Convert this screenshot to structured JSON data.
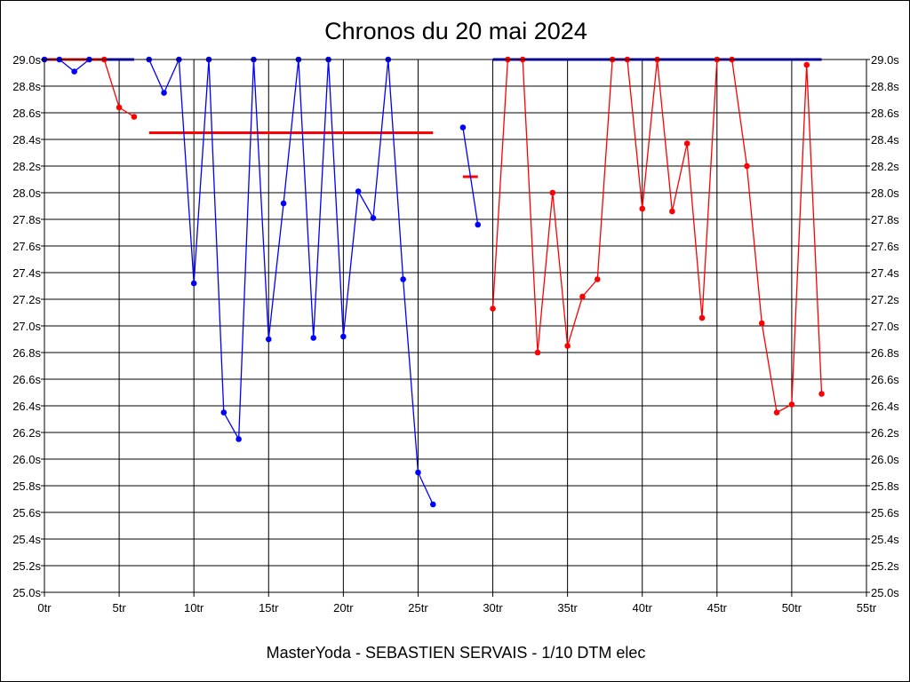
{
  "chart_data": {
    "type": "line",
    "title": "Chronos du 20 mai 2024",
    "footer": "MasterYoda - SEBASTIEN SERVAIS - 1/10 DTM elec",
    "xlim": [
      0,
      55
    ],
    "ylim": [
      25.0,
      29.0
    ],
    "x_ticks": [
      0,
      5,
      10,
      15,
      20,
      25,
      30,
      35,
      40,
      45,
      50,
      55
    ],
    "x_tick_suffix": "tr",
    "y_ticks": [
      25.0,
      25.2,
      25.4,
      25.6,
      25.8,
      26.0,
      26.2,
      26.4,
      26.6,
      26.8,
      27.0,
      27.2,
      27.4,
      27.6,
      27.8,
      28.0,
      28.2,
      28.4,
      28.6,
      28.8,
      29.0
    ],
    "y_tick_suffix": "s",
    "grid": true,
    "colors": {
      "blue": "#0000ff",
      "red": "#ff0000"
    },
    "series": [
      {
        "name": "blue-1",
        "color": "#0000ff",
        "points": [
          [
            0,
            29.0
          ],
          [
            1,
            29.0
          ],
          [
            2,
            28.91
          ],
          [
            3,
            29.0
          ]
        ]
      },
      {
        "name": "red-1",
        "color": "#ff0000",
        "points": [
          [
            4,
            29.0
          ],
          [
            5,
            28.64
          ],
          [
            6,
            28.57
          ]
        ]
      },
      {
        "name": "blue-2",
        "color": "#0000ff",
        "points": [
          [
            7,
            29.0
          ],
          [
            8,
            28.75
          ],
          [
            9,
            29.0
          ],
          [
            10,
            27.32
          ],
          [
            11,
            29.0
          ],
          [
            12,
            26.35
          ],
          [
            13,
            26.15
          ],
          [
            14,
            29.0
          ],
          [
            15,
            26.9
          ],
          [
            16,
            27.92
          ],
          [
            17,
            29.0
          ],
          [
            18,
            26.91
          ],
          [
            19,
            29.0
          ],
          [
            20,
            26.92
          ],
          [
            21,
            28.01
          ],
          [
            22,
            27.81
          ],
          [
            23,
            29.0
          ],
          [
            24,
            27.35
          ],
          [
            25,
            25.9
          ],
          [
            26,
            25.66
          ]
        ]
      },
      {
        "name": "blue-3",
        "color": "#0000ff",
        "points": [
          [
            28,
            28.49
          ],
          [
            29,
            27.76
          ]
        ]
      },
      {
        "name": "red-2",
        "color": "#ff0000",
        "points": [
          [
            30,
            27.13
          ],
          [
            31,
            29.0
          ],
          [
            32,
            29.0
          ],
          [
            33,
            26.8
          ],
          [
            34,
            28.0
          ],
          [
            35,
            26.85
          ],
          [
            36,
            27.22
          ],
          [
            37,
            27.35
          ],
          [
            38,
            29.0
          ],
          [
            39,
            29.0
          ],
          [
            40,
            27.88
          ],
          [
            41,
            29.0
          ],
          [
            42,
            27.86
          ],
          [
            43,
            28.37
          ],
          [
            44,
            27.06
          ],
          [
            45,
            29.0
          ],
          [
            46,
            29.0
          ],
          [
            47,
            28.2
          ],
          [
            48,
            27.02
          ],
          [
            49,
            26.35
          ],
          [
            50,
            26.41
          ],
          [
            51,
            28.96
          ],
          [
            52,
            26.49
          ]
        ]
      }
    ],
    "reference_lines": [
      {
        "color": "#ff0000",
        "x": [
          0,
          4
        ],
        "y": 29.0
      },
      {
        "color": "#0000ff",
        "x": [
          4,
          6
        ],
        "y": 29.0
      },
      {
        "color": "#ff0000",
        "x": [
          7,
          26
        ],
        "y": 28.45
      },
      {
        "color": "#ff0000",
        "x": [
          28,
          29
        ],
        "y": 28.12
      },
      {
        "color": "#0000ff",
        "x": [
          30,
          52
        ],
        "y": 29.0
      }
    ]
  }
}
